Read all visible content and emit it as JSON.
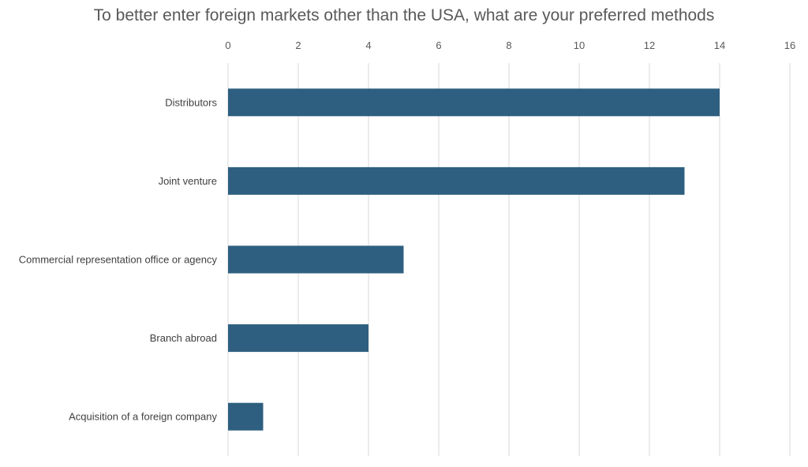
{
  "chart_data": {
    "type": "bar",
    "orientation": "horizontal",
    "title": "To better enter foreign markets other than the USA, what are your preferred methods",
    "categories": [
      "Distributors",
      "Joint venture",
      "Commercial representation office or agency",
      "Branch abroad",
      "Acquisition of a foreign company"
    ],
    "values": [
      14,
      13,
      5,
      4,
      1
    ],
    "xlim": [
      0,
      16
    ],
    "x_ticks": [
      0,
      2,
      4,
      6,
      8,
      10,
      12,
      14,
      16
    ],
    "x_axis_position": "top",
    "grid": true,
    "legend": "none",
    "bar_color": "#2E5F80",
    "grid_color": "#D9D9D9"
  }
}
